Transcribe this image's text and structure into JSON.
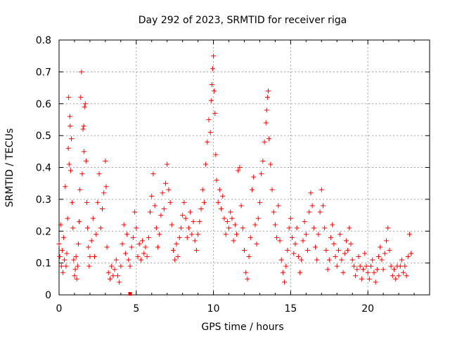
{
  "chart_data": {
    "type": "scatter",
    "title": "Day 292 of 2023, SRMTID for receiver riga",
    "xlabel": "GPS time / hours",
    "ylabel": "SRMTID / TECUs",
    "xlim": [
      0,
      24
    ],
    "ylim": [
      0,
      0.8
    ],
    "x_ticks": [
      0,
      5,
      10,
      15,
      20
    ],
    "x_tick_labels": [
      "0",
      "5",
      "10",
      "15",
      "20"
    ],
    "y_ticks": [
      0,
      0.1,
      0.2,
      0.3,
      0.4,
      0.5,
      0.6,
      0.7,
      0.8
    ],
    "y_tick_labels": [
      "0",
      "0.1",
      "0.2",
      "0.3",
      "0.4",
      "0.5",
      "0.6",
      "0.7",
      "0.8"
    ],
    "grid": true,
    "marker": "plus",
    "series": [
      {
        "name": "SRMTID",
        "color": "#ff0000",
        "points": [
          [
            0.0,
            0.16
          ],
          [
            0.05,
            0.12
          ],
          [
            0.1,
            0.22
          ],
          [
            0.15,
            0.09
          ],
          [
            0.2,
            0.14
          ],
          [
            0.25,
            0.07
          ],
          [
            0.3,
            0.18
          ],
          [
            0.35,
            0.11
          ],
          [
            0.4,
            0.34
          ],
          [
            0.45,
            0.09
          ],
          [
            0.5,
            0.13
          ],
          [
            0.55,
            0.24
          ],
          [
            0.6,
            0.46
          ],
          [
            0.62,
            0.62
          ],
          [
            0.65,
            0.41
          ],
          [
            0.7,
            0.56
          ],
          [
            0.72,
            0.53
          ],
          [
            0.75,
            0.39
          ],
          [
            0.8,
            0.49
          ],
          [
            0.85,
            0.29
          ],
          [
            0.9,
            0.21
          ],
          [
            0.95,
            0.11
          ],
          [
            1.0,
            0.06
          ],
          [
            1.05,
            0.08
          ],
          [
            1.1,
            0.12
          ],
          [
            1.15,
            0.05
          ],
          [
            1.2,
            0.09
          ],
          [
            1.25,
            0.16
          ],
          [
            1.3,
            0.23
          ],
          [
            1.35,
            0.33
          ],
          [
            1.4,
            0.62
          ],
          [
            1.45,
            0.7
          ],
          [
            1.5,
            0.38
          ],
          [
            1.55,
            0.52
          ],
          [
            1.6,
            0.53
          ],
          [
            1.62,
            0.45
          ],
          [
            1.65,
            0.59
          ],
          [
            1.7,
            0.6
          ],
          [
            1.75,
            0.42
          ],
          [
            1.8,
            0.29
          ],
          [
            1.85,
            0.21
          ],
          [
            1.9,
            0.15
          ],
          [
            1.95,
            0.09
          ],
          [
            2.0,
            0.12
          ],
          [
            2.1,
            0.17
          ],
          [
            2.2,
            0.24
          ],
          [
            2.3,
            0.12
          ],
          [
            2.4,
            0.19
          ],
          [
            2.5,
            0.29
          ],
          [
            2.6,
            0.38
          ],
          [
            2.7,
            0.21
          ],
          [
            2.8,
            0.27
          ],
          [
            2.9,
            0.32
          ],
          [
            3.0,
            0.42
          ],
          [
            3.05,
            0.34
          ],
          [
            3.1,
            0.15
          ],
          [
            3.2,
            0.07
          ],
          [
            3.3,
            0.05
          ],
          [
            3.4,
            0.09
          ],
          [
            3.5,
            0.06
          ],
          [
            3.6,
            0.08
          ],
          [
            3.7,
            0.11
          ],
          [
            3.8,
            0.06
          ],
          [
            3.9,
            0.04
          ],
          [
            4.0,
            0.09
          ],
          [
            4.1,
            0.16
          ],
          [
            4.2,
            0.22
          ],
          [
            4.3,
            0.13
          ],
          [
            4.4,
            0.19
          ],
          [
            4.5,
            0.11
          ],
          [
            4.6,
            0.09
          ],
          [
            4.7,
            0.15
          ],
          [
            4.8,
            0.18
          ],
          [
            4.9,
            0.26
          ],
          [
            5.0,
            0.21
          ],
          [
            5.1,
            0.12
          ],
          [
            5.2,
            0.16
          ],
          [
            5.3,
            0.11
          ],
          [
            5.4,
            0.17
          ],
          [
            5.5,
            0.13
          ],
          [
            5.6,
            0.15
          ],
          [
            5.7,
            0.12
          ],
          [
            5.8,
            0.18
          ],
          [
            5.9,
            0.26
          ],
          [
            6.0,
            0.31
          ],
          [
            6.1,
            0.38
          ],
          [
            6.2,
            0.28
          ],
          [
            6.3,
            0.21
          ],
          [
            6.4,
            0.15
          ],
          [
            6.5,
            0.19
          ],
          [
            6.6,
            0.25
          ],
          [
            6.7,
            0.32
          ],
          [
            6.8,
            0.27
          ],
          [
            6.9,
            0.35
          ],
          [
            7.0,
            0.41
          ],
          [
            7.1,
            0.33
          ],
          [
            7.2,
            0.29
          ],
          [
            7.3,
            0.22
          ],
          [
            7.4,
            0.14
          ],
          [
            7.5,
            0.11
          ],
          [
            7.6,
            0.16
          ],
          [
            7.7,
            0.12
          ],
          [
            7.8,
            0.18
          ],
          [
            7.9,
            0.21
          ],
          [
            8.0,
            0.25
          ],
          [
            8.1,
            0.29
          ],
          [
            8.2,
            0.24
          ],
          [
            8.3,
            0.18
          ],
          [
            8.4,
            0.21
          ],
          [
            8.5,
            0.26
          ],
          [
            8.6,
            0.19
          ],
          [
            8.7,
            0.23
          ],
          [
            8.8,
            0.17
          ],
          [
            8.9,
            0.14
          ],
          [
            9.0,
            0.19
          ],
          [
            9.1,
            0.23
          ],
          [
            9.2,
            0.27
          ],
          [
            9.3,
            0.33
          ],
          [
            9.4,
            0.29
          ],
          [
            9.5,
            0.41
          ],
          [
            9.6,
            0.48
          ],
          [
            9.7,
            0.55
          ],
          [
            9.8,
            0.51
          ],
          [
            9.85,
            0.61
          ],
          [
            9.9,
            0.66
          ],
          [
            9.95,
            0.71
          ],
          [
            10.0,
            0.75
          ],
          [
            10.05,
            0.64
          ],
          [
            10.1,
            0.57
          ],
          [
            10.15,
            0.44
          ],
          [
            10.2,
            0.36
          ],
          [
            10.3,
            0.29
          ],
          [
            10.4,
            0.33
          ],
          [
            10.5,
            0.27
          ],
          [
            10.6,
            0.31
          ],
          [
            10.7,
            0.24
          ],
          [
            10.8,
            0.19
          ],
          [
            10.9,
            0.23
          ],
          [
            11.0,
            0.21
          ],
          [
            11.1,
            0.26
          ],
          [
            11.2,
            0.24
          ],
          [
            11.3,
            0.17
          ],
          [
            11.4,
            0.22
          ],
          [
            11.5,
            0.19
          ],
          [
            11.6,
            0.39
          ],
          [
            11.7,
            0.4
          ],
          [
            11.8,
            0.28
          ],
          [
            11.9,
            0.21
          ],
          [
            12.0,
            0.14
          ],
          [
            12.1,
            0.07
          ],
          [
            12.2,
            0.05
          ],
          [
            12.3,
            0.12
          ],
          [
            12.4,
            0.18
          ],
          [
            12.5,
            0.33
          ],
          [
            12.6,
            0.37
          ],
          [
            12.7,
            0.22
          ],
          [
            12.8,
            0.16
          ],
          [
            12.9,
            0.24
          ],
          [
            13.0,
            0.29
          ],
          [
            13.1,
            0.38
          ],
          [
            13.2,
            0.42
          ],
          [
            13.3,
            0.48
          ],
          [
            13.4,
            0.54
          ],
          [
            13.45,
            0.58
          ],
          [
            13.5,
            0.62
          ],
          [
            13.55,
            0.64
          ],
          [
            13.6,
            0.49
          ],
          [
            13.7,
            0.41
          ],
          [
            13.8,
            0.33
          ],
          [
            13.9,
            0.26
          ],
          [
            14.0,
            0.22
          ],
          [
            14.1,
            0.18
          ],
          [
            14.2,
            0.28
          ],
          [
            14.3,
            0.17
          ],
          [
            14.4,
            0.11
          ],
          [
            14.5,
            0.07
          ],
          [
            14.6,
            0.04
          ],
          [
            14.7,
            0.09
          ],
          [
            14.8,
            0.14
          ],
          [
            14.9,
            0.21
          ],
          [
            15.0,
            0.24
          ],
          [
            15.1,
            0.18
          ],
          [
            15.2,
            0.13
          ],
          [
            15.3,
            0.16
          ],
          [
            15.4,
            0.21
          ],
          [
            15.5,
            0.12
          ],
          [
            15.6,
            0.07
          ],
          [
            15.7,
            0.11
          ],
          [
            15.8,
            0.17
          ],
          [
            15.9,
            0.23
          ],
          [
            16.0,
            0.19
          ],
          [
            16.1,
            0.14
          ],
          [
            16.2,
            0.26
          ],
          [
            16.3,
            0.32
          ],
          [
            16.4,
            0.28
          ],
          [
            16.5,
            0.21
          ],
          [
            16.6,
            0.15
          ],
          [
            16.7,
            0.11
          ],
          [
            16.8,
            0.19
          ],
          [
            16.9,
            0.26
          ],
          [
            17.0,
            0.33
          ],
          [
            17.1,
            0.28
          ],
          [
            17.2,
            0.21
          ],
          [
            17.3,
            0.14
          ],
          [
            17.4,
            0.08
          ],
          [
            17.5,
            0.11
          ],
          [
            17.6,
            0.18
          ],
          [
            17.7,
            0.22
          ],
          [
            17.8,
            0.16
          ],
          [
            17.9,
            0.12
          ],
          [
            18.0,
            0.09
          ],
          [
            18.1,
            0.14
          ],
          [
            18.2,
            0.19
          ],
          [
            18.3,
            0.11
          ],
          [
            18.4,
            0.07
          ],
          [
            18.5,
            0.13
          ],
          [
            18.6,
            0.17
          ],
          [
            18.7,
            0.14
          ],
          [
            18.8,
            0.21
          ],
          [
            18.9,
            0.16
          ],
          [
            19.0,
            0.11
          ],
          [
            19.1,
            0.09
          ],
          [
            19.2,
            0.06
          ],
          [
            19.3,
            0.08
          ],
          [
            19.4,
            0.12
          ],
          [
            19.5,
            0.09
          ],
          [
            19.6,
            0.05
          ],
          [
            19.7,
            0.08
          ],
          [
            19.8,
            0.13
          ],
          [
            19.9,
            0.09
          ],
          [
            20.0,
            0.07
          ],
          [
            20.1,
            0.05
          ],
          [
            20.2,
            0.09
          ],
          [
            20.3,
            0.11
          ],
          [
            20.4,
            0.07
          ],
          [
            20.5,
            0.04
          ],
          [
            20.6,
            0.08
          ],
          [
            20.7,
            0.12
          ],
          [
            20.8,
            0.15
          ],
          [
            20.9,
            0.11
          ],
          [
            21.0,
            0.08
          ],
          [
            21.1,
            0.13
          ],
          [
            21.2,
            0.17
          ],
          [
            21.3,
            0.21
          ],
          [
            21.4,
            0.14
          ],
          [
            21.5,
            0.09
          ],
          [
            21.6,
            0.06
          ],
          [
            21.7,
            0.08
          ],
          [
            21.8,
            0.05
          ],
          [
            21.9,
            0.09
          ],
          [
            22.0,
            0.06
          ],
          [
            22.1,
            0.09
          ],
          [
            22.2,
            0.11
          ],
          [
            22.3,
            0.07
          ],
          [
            22.4,
            0.09
          ],
          [
            22.5,
            0.06
          ],
          [
            22.6,
            0.12
          ],
          [
            22.7,
            0.19
          ],
          [
            22.8,
            0.13
          ]
        ]
      }
    ],
    "annotations": [
      {
        "type": "marker",
        "x": 4.6,
        "y": 0.0,
        "color": "#ff0000"
      }
    ]
  }
}
